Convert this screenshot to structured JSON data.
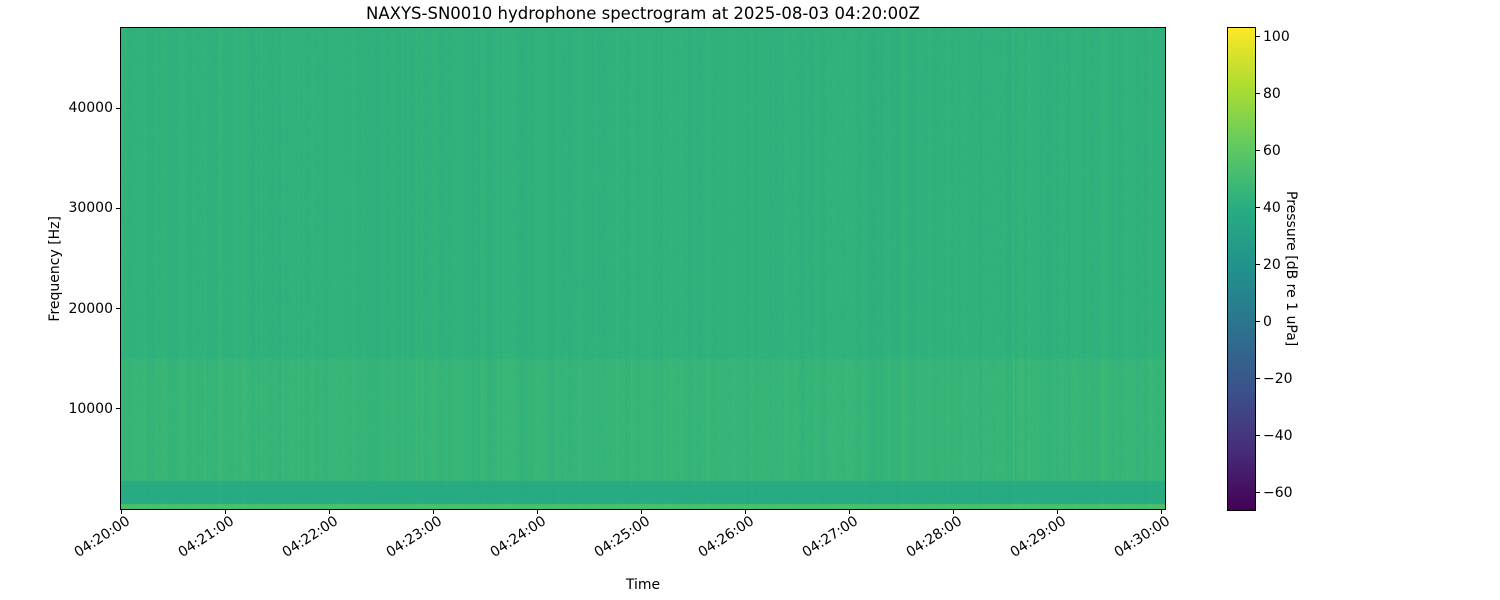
{
  "figure": {
    "background": "#ffffff",
    "text_color": "#000000"
  },
  "chart_data": {
    "type": "heatmap",
    "variant": "spectrogram",
    "title": "NAXYS-SN0010 hydrophone spectrogram at 2025-08-03 04:20:00Z",
    "xlabel": "Time",
    "ylabel": "Frequency [Hz]",
    "grid": false,
    "x_ticks": [
      {
        "label": "04:20:00"
      },
      {
        "label": "04:21:00"
      },
      {
        "label": "04:22:00"
      },
      {
        "label": "04:23:00"
      },
      {
        "label": "04:24:00"
      },
      {
        "label": "04:25:00"
      },
      {
        "label": "04:26:00"
      },
      {
        "label": "04:27:00"
      },
      {
        "label": "04:28:00"
      },
      {
        "label": "04:29:00"
      },
      {
        "label": "04:30:00"
      }
    ],
    "x_tick_rotation_deg": 33,
    "y_ticks": [
      {
        "value": 10000,
        "label": "10000"
      },
      {
        "value": 20000,
        "label": "20000"
      },
      {
        "value": 30000,
        "label": "30000"
      },
      {
        "value": 40000,
        "label": "40000"
      }
    ],
    "ylim_hz": [
      0,
      48000
    ],
    "colorbar": {
      "label": "Pressure [dB re 1 uPa]",
      "colormap": "viridis",
      "clim_db": [
        -66,
        103
      ],
      "ticks": [
        {
          "value": 100,
          "label": "100"
        },
        {
          "value": 80,
          "label": "80"
        },
        {
          "value": 60,
          "label": "60"
        },
        {
          "value": 40,
          "label": "40"
        },
        {
          "value": 20,
          "label": "20"
        },
        {
          "value": 0,
          "label": "0"
        },
        {
          "value": -20,
          "label": "−20"
        },
        {
          "value": -40,
          "label": "−40"
        },
        {
          "value": -60,
          "label": "−60"
        }
      ],
      "stops": [
        {
          "t": 0.0,
          "color": "#440154"
        },
        {
          "t": 0.125,
          "color": "#472d7b"
        },
        {
          "t": 0.25,
          "color": "#3b528b"
        },
        {
          "t": 0.375,
          "color": "#2c728e"
        },
        {
          "t": 0.5,
          "color": "#21918c"
        },
        {
          "t": 0.625,
          "color": "#27ad81"
        },
        {
          "t": 0.75,
          "color": "#5ec962"
        },
        {
          "t": 0.875,
          "color": "#aadc32"
        },
        {
          "t": 1.0,
          "color": "#fde725"
        }
      ]
    },
    "spectrogram_content": {
      "description": "Nearly uniform broadband green (~40-50 dB) with fine vertical time striations; slightly elevated 2.8-15 kHz band, a darker dip between ~0.45-2.8 kHz, and a thin brighter line below ~450 Hz at the bottom edge.",
      "base_level_db": 43,
      "striation_amplitude_db": 3,
      "pixel_jitter_db": 1.4,
      "bands": [
        {
          "freq_hz": [
            15000,
            48000
          ],
          "level_db": 43.0,
          "striation_gain": 1.0
        },
        {
          "freq_hz": [
            2800,
            15000
          ],
          "level_db": 45.5,
          "striation_gain": 1.3
        },
        {
          "freq_hz": [
            450,
            2800
          ],
          "level_db": 38.5,
          "striation_gain": 0.7
        },
        {
          "freq_hz": [
            0,
            450
          ],
          "level_db": 53.0,
          "striation_gain": 0.9
        }
      ],
      "noise_seed": 42
    }
  }
}
